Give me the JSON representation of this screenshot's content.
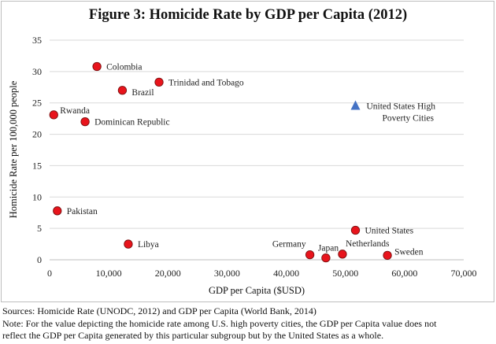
{
  "title": "Figure 3: Homicide Rate by GDP per Capita (2012)",
  "chart_data": {
    "type": "scatter",
    "title": "Figure 3: Homicide Rate by GDP per Capita (2012)",
    "xlabel": "GDP per Capita ($USD)",
    "ylabel": "Homicide Rate per 100,000 people",
    "xlim": [
      0,
      70000
    ],
    "ylim": [
      0,
      35
    ],
    "x_ticks": [
      0,
      10000,
      20000,
      30000,
      40000,
      50000,
      60000,
      70000
    ],
    "x_tick_labels": [
      "0",
      "10,000",
      "20,000",
      "30,000",
      "40,000",
      "50,000",
      "60,000",
      "70,000"
    ],
    "y_ticks": [
      0,
      5,
      10,
      15,
      20,
      25,
      30,
      35
    ],
    "y_tick_labels": [
      "0",
      "5",
      "10",
      "15",
      "20",
      "25",
      "30",
      "35"
    ],
    "grid": "horizontal",
    "series": [
      {
        "name": "",
        "marker": "circle",
        "color": "#e8141c",
        "points": [
          {
            "label": "Colombia",
            "x": 8000,
            "y": 30.8
          },
          {
            "label": "Trinidad and Tobago",
            "x": 18500,
            "y": 28.3
          },
          {
            "label": "Brazil",
            "x": 12300,
            "y": 27.0
          },
          {
            "label": "Rwanda",
            "x": 700,
            "y": 23.1
          },
          {
            "label": "Dominican Republic",
            "x": 6000,
            "y": 22.0
          },
          {
            "label": "Pakistan",
            "x": 1300,
            "y": 7.8
          },
          {
            "label": "Libya",
            "x": 13300,
            "y": 2.5
          },
          {
            "label": "United States",
            "x": 51700,
            "y": 4.7
          },
          {
            "label": "Germany",
            "x": 44000,
            "y": 0.8
          },
          {
            "label": "Japan",
            "x": 46700,
            "y": 0.3
          },
          {
            "label": "Netherlands",
            "x": 49500,
            "y": 0.9
          },
          {
            "label": "Sweden",
            "x": 57100,
            "y": 0.7
          }
        ]
      },
      {
        "name": "",
        "marker": "triangle",
        "color": "#4472c4",
        "points": [
          {
            "label": "United States High Poverty Cities",
            "label_lines": [
              "United States High",
              "Poverty Cities"
            ],
            "x": 51700,
            "y": 24.5
          }
        ]
      }
    ]
  },
  "notes": {
    "sources": "Sources: Homicide Rate (UNODC, 2012) and GDP per Capita (World Bank, 2014)",
    "note_line1": "Note: For the value depicting the homicide rate among U.S. high poverty cities, the GDP per Capita value does not",
    "note_line2": "reflect the GDP per Capita generated by this particular subgroup but by the United States as a whole."
  }
}
